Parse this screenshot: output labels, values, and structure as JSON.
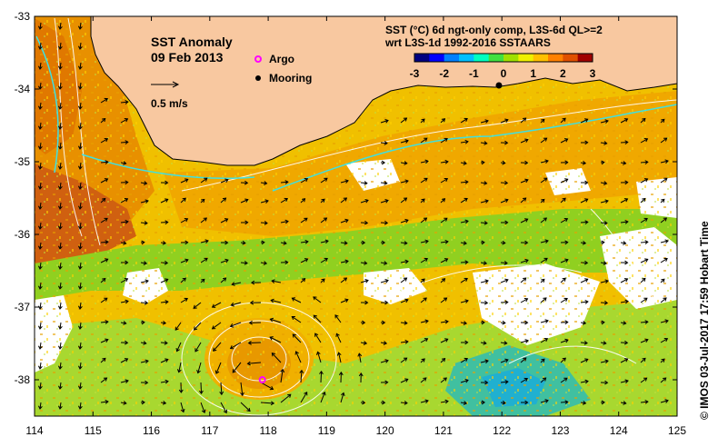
{
  "map": {
    "title": "SST Anomaly",
    "date": "09 Feb 2013",
    "scale_arrow_label": "0.5 m/s",
    "legend": {
      "argo_label": "Argo",
      "mooring_label": "Mooring",
      "argo_color": "#ff00ff",
      "mooring_color": "#000000"
    },
    "product_info": {
      "line1": "SST (°C) 6d ngt-only comp, L3S-6d QL>=2",
      "line2": "wrt L3S-1d 1992-2016 SSTAARS"
    },
    "colorbar": {
      "min": -3,
      "max": 3,
      "tick_labels": [
        "-3",
        "-2",
        "-1",
        "0",
        "1",
        "2",
        "3"
      ],
      "colors": [
        "#000080",
        "#0000ff",
        "#0080ff",
        "#00c0ff",
        "#00ffc0",
        "#40e040",
        "#a0e000",
        "#f0f000",
        "#ffc000",
        "#ff8000",
        "#e05000",
        "#a00000"
      ]
    },
    "x_axis": {
      "min": 114,
      "max": 125,
      "tick_labels": [
        "114",
        "115",
        "116",
        "117",
        "118",
        "119",
        "120",
        "121",
        "122",
        "123",
        "124",
        "125"
      ]
    },
    "y_axis": {
      "min": -38.5,
      "max": -33,
      "tick_labels": [
        "-33",
        "-34",
        "-35",
        "-36",
        "-37",
        "-38"
      ]
    },
    "credit": "© IMOS 03-Jul-2017 17:59 Hobart Time",
    "land_color": "#f8c8a0",
    "missing_color": "#ffffff",
    "argo_position": {
      "lon": 117.9,
      "lat": -38.0
    },
    "mooring_position": {
      "lon": 121.95,
      "lat": -33.95
    }
  }
}
